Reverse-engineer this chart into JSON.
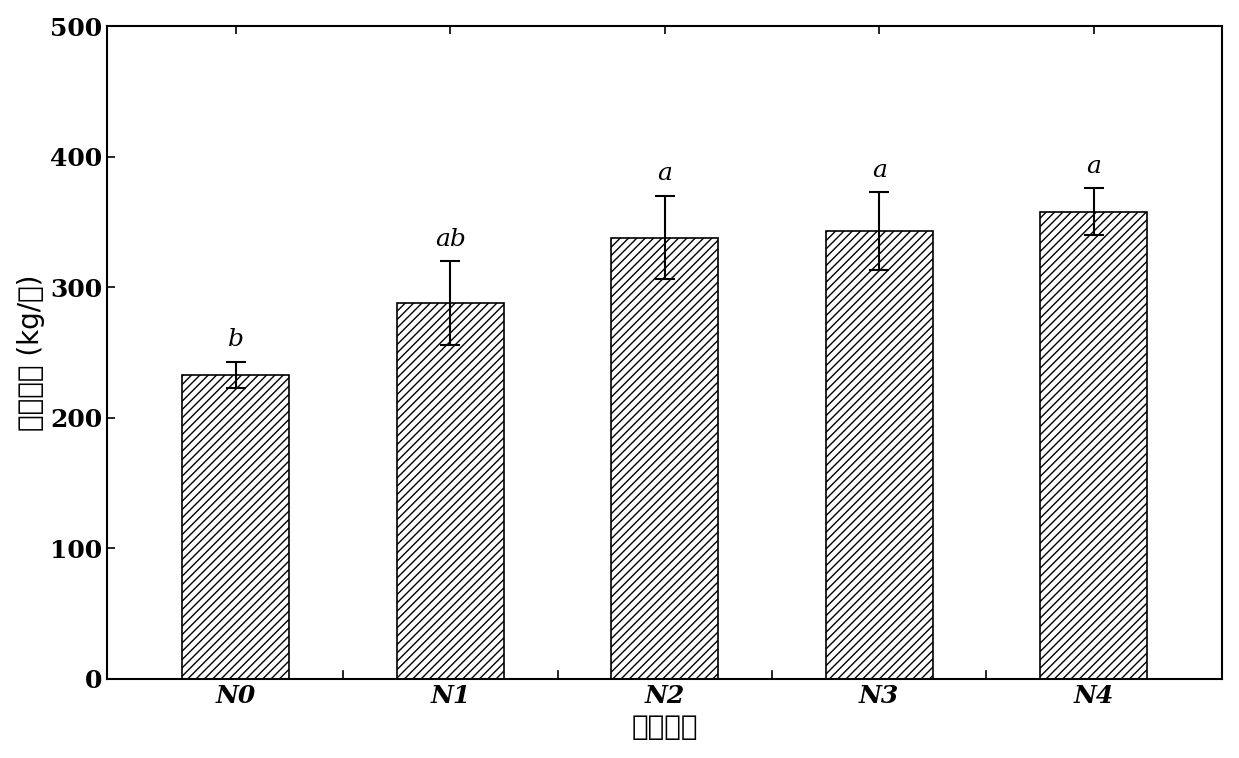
{
  "categories": [
    "N0",
    "N1",
    "N2",
    "N3",
    "N4"
  ],
  "values": [
    233,
    288,
    338,
    343,
    358
  ],
  "errors": [
    10,
    32,
    32,
    30,
    18
  ],
  "sig_labels": [
    "b",
    "ab",
    "a",
    "a",
    "a"
  ],
  "bar_color": "white",
  "bar_edgecolor": "black",
  "hatch": "////",
  "ylabel": "大麦产量 (kg/亩)",
  "xlabel": "试验处理",
  "ylim": [
    0,
    500
  ],
  "yticks": [
    0,
    100,
    200,
    300,
    400,
    500
  ],
  "bar_width": 0.5,
  "sig_label_fontsize": 18,
  "axis_label_fontsize": 20,
  "tick_fontsize": 18,
  "background_color": "#ffffff",
  "fig_width": 12.39,
  "fig_height": 7.58
}
